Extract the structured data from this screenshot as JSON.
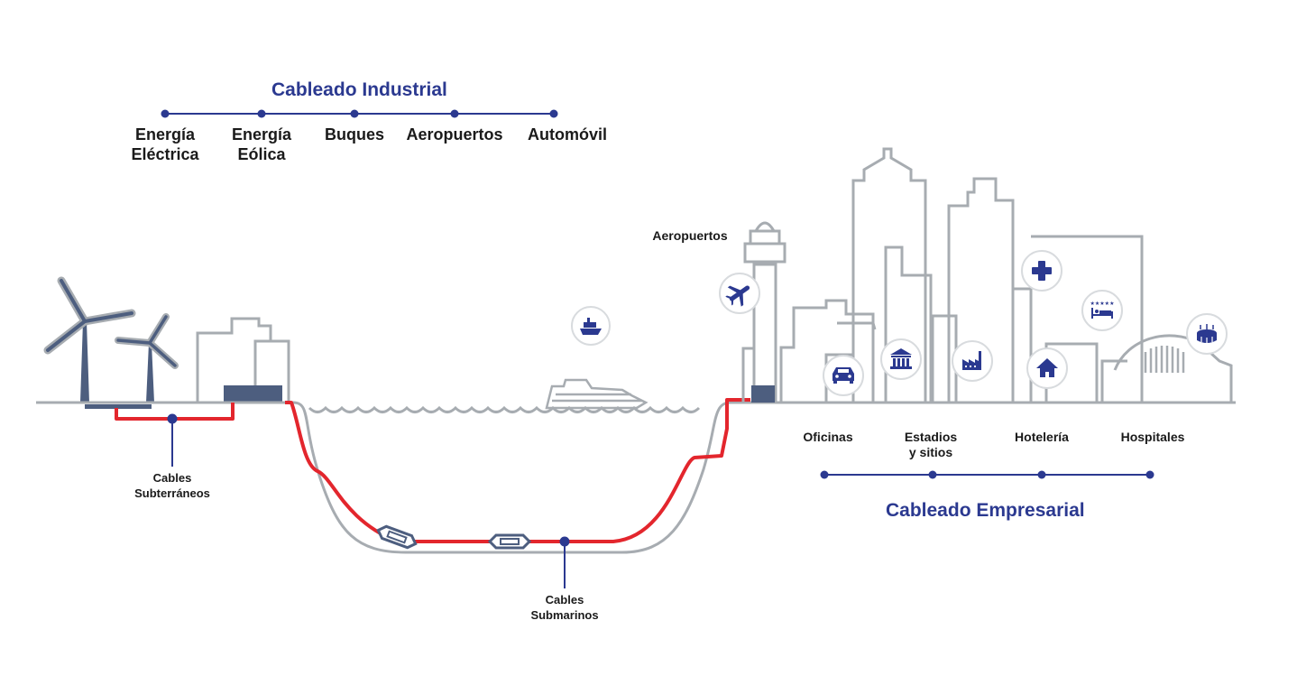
{
  "colors": {
    "brand_blue": "#2b3990",
    "cable_red": "#e3262d",
    "outline_gray": "#a7acb1",
    "dark_slate": "#4d5e7f"
  },
  "industrial": {
    "title": "Cableado Industrial",
    "items": [
      {
        "line1": "Energía",
        "line2": "Eléctrica"
      },
      {
        "line1": "Energía",
        "line2": "Eólica"
      },
      {
        "line1": "Buques",
        "line2": ""
      },
      {
        "line1": "Aeropuertos",
        "line2": ""
      },
      {
        "line1": "Automóvil",
        "line2": ""
      }
    ]
  },
  "enterprise": {
    "title": "Cableado Empresarial",
    "items": [
      {
        "line1": "Oficinas",
        "line2": ""
      },
      {
        "line1": "Estadios",
        "line2": "y sitios"
      },
      {
        "line1": "Hotelería",
        "line2": ""
      },
      {
        "line1": "Hospitales",
        "line2": ""
      }
    ]
  },
  "labels": {
    "airport": "Aeropuertos",
    "underground_line1": "Cables",
    "underground_line2": "Subterráneos",
    "submarine_line1": "Cables",
    "submarine_line2": "Submarinos"
  },
  "icons": [
    "ship-icon",
    "airplane-icon",
    "car-icon",
    "bank-icon",
    "factory-icon",
    "hospital-cross-icon",
    "hotel-bed-icon",
    "house-icon",
    "stadium-icon"
  ]
}
